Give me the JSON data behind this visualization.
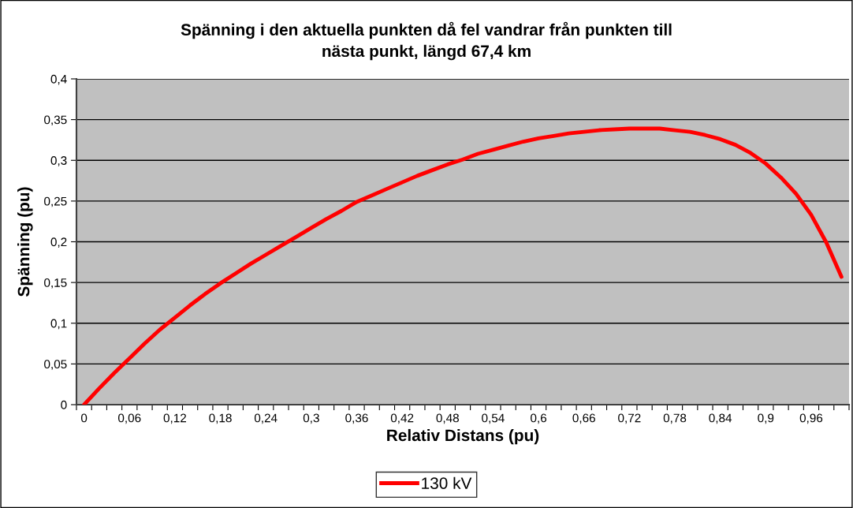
{
  "chart_data": {
    "type": "line",
    "title": "Spänning i den aktuella punkten då fel vandrar från punkten till\nnästa punkt, längd 67,4 km",
    "xlabel": "Relativ Distans (pu)",
    "ylabel": "Spänning (pu)",
    "categories": [
      "0",
      null,
      null,
      "0,06",
      null,
      null,
      "0,12",
      null,
      null,
      "0,18",
      null,
      null,
      "0,24",
      null,
      null,
      "0,3",
      null,
      null,
      "0,36",
      null,
      null,
      "0,42",
      null,
      null,
      "0,48",
      null,
      null,
      "0,54",
      null,
      null,
      "0,6",
      null,
      null,
      "0,66",
      null,
      null,
      "0,72",
      null,
      null,
      "0,78",
      null,
      null,
      "0,84",
      null,
      null,
      "0,9",
      null,
      null,
      "0,96",
      null,
      null
    ],
    "series": [
      {
        "name": "130 kV",
        "color": "#ff0000",
        "values": [
          0,
          0.02,
          0.039,
          0.057,
          0.075,
          0.092,
          0.107,
          0.122,
          0.136,
          0.149,
          0.161,
          0.173,
          0.184,
          0.195,
          0.206,
          0.217,
          0.228,
          0.238,
          0.249,
          0.257,
          0.265,
          0.273,
          0.281,
          0.288,
          0.295,
          0.301,
          0.308,
          0.313,
          0.318,
          0.323,
          0.327,
          0.33,
          0.333,
          0.335,
          0.337,
          0.338,
          0.339,
          0.339,
          0.339,
          0.337,
          0.335,
          0.331,
          0.326,
          0.319,
          0.309,
          0.296,
          0.279,
          0.259,
          0.233,
          0.199,
          0.157
        ]
      }
    ],
    "ylim": [
      0,
      0.4
    ],
    "yticks": [
      {
        "value": 0,
        "label": "0"
      },
      {
        "value": 0.05,
        "label": "0,05"
      },
      {
        "value": 0.1,
        "label": "0,1"
      },
      {
        "value": 0.15,
        "label": "0,15"
      },
      {
        "value": 0.2,
        "label": "0,2"
      },
      {
        "value": 0.25,
        "label": "0,25"
      },
      {
        "value": 0.3,
        "label": "0,3"
      },
      {
        "value": 0.35,
        "label": "0,35"
      },
      {
        "value": 0.4,
        "label": "0,4"
      }
    ],
    "grid": "y",
    "legend": "bottom",
    "marker": "none",
    "line_style": "solid"
  }
}
